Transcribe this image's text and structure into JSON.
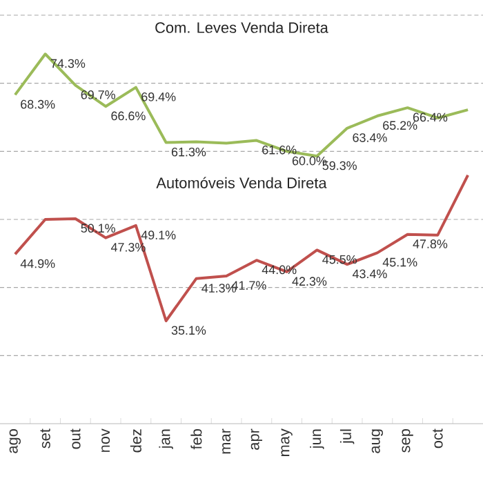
{
  "chart_data": {
    "type": "line",
    "categories": [
      "ago",
      "set",
      "out",
      "nov",
      "dez",
      "jan",
      "feb",
      "mar",
      "apr",
      "may",
      "jun",
      "jul",
      "aug",
      "sep",
      "oct",
      null
    ],
    "series": [
      {
        "color": "#9bbb59",
        "values": [
          68.3,
          74.3,
          69.7,
          66.6,
          69.4,
          61.3,
          61.4,
          61.2,
          61.6,
          60.0,
          59.3,
          63.4,
          65.2,
          66.4,
          64.9,
          66.1
        ],
        "value_labels": [
          "68.3%",
          "74.3%",
          "69.7%",
          "66.6%",
          "69.4%",
          "61.3%",
          null,
          null,
          "61.6%",
          "60.0%",
          "59.3%",
          "63.4%",
          "65.2%",
          "66.4%",
          null,
          null
        ]
      },
      {
        "color": "#c0504d",
        "values": [
          44.9,
          50.0,
          50.1,
          47.3,
          49.1,
          35.1,
          41.3,
          41.7,
          44.0,
          42.3,
          45.5,
          43.4,
          45.1,
          47.8,
          47.7,
          56.5
        ],
        "value_labels": [
          "44.9%",
          null,
          "50.1%",
          "47.3%",
          "49.1%",
          "35.1%",
          "41.3%",
          "41.7%",
          "44.0%",
          "42.3%",
          "45.5%",
          "43.4%",
          "45.1%",
          "47.8%",
          null,
          null
        ]
      }
    ],
    "annotations": [
      "Com. Leves Venda Direta",
      "Automóveis Venda Direta"
    ],
    "ylim": [
      20,
      80
    ],
    "yticks": [
      {
        "value": 30,
        "label": null
      },
      {
        "value": 40,
        "label": null
      },
      {
        "value": 50,
        "label": null
      },
      {
        "value": 60,
        "label": null
      },
      {
        "value": 70,
        "label": null
      },
      {
        "value": 80,
        "label": null
      }
    ],
    "tick_labels": "x",
    "grid": "y",
    "marker": "none",
    "line_style": "solid"
  }
}
